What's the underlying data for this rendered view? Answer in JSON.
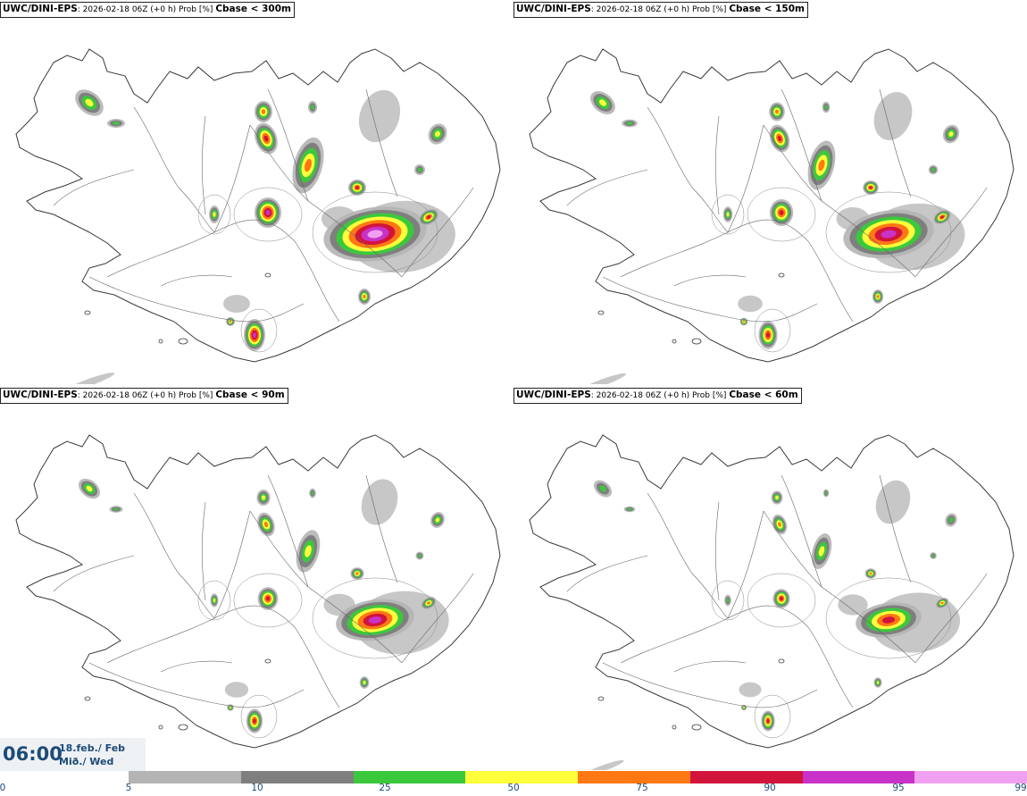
{
  "panels": [
    {
      "id": "p1",
      "model": "UWC/DINI-EPS",
      "info": ": 2026-02-18 06Z (+0 h) Prob [%]",
      "threshold": "Cbase < 300m",
      "intensity": 1.0
    },
    {
      "id": "p2",
      "model": "UWC/DINI-EPS",
      "info": ": 2026-02-18 06Z (+0 h) Prob [%]",
      "threshold": "Cbase < 150m",
      "intensity": 0.75
    },
    {
      "id": "p3",
      "model": "UWC/DINI-EPS",
      "info": ": 2026-02-18 06Z (+0 h) Prob [%]",
      "threshold": "Cbase < 90m",
      "intensity": 0.6
    },
    {
      "id": "p4",
      "model": "UWC/DINI-EPS",
      "info": ": 2026-02-18 06Z (+0 h) Prob [%]",
      "threshold": "Cbase < 60m",
      "intensity": 0.45
    }
  ],
  "time": {
    "clock": "06:00",
    "date_line1": "18.feb./ Feb",
    "date_line2": "Mið./ Wed"
  },
  "legend": {
    "ticks": [
      "0",
      "5",
      "10",
      "25",
      "50",
      "75",
      "90",
      "95",
      "99"
    ],
    "colors": [
      "#b4b4b4",
      "#7f7f7f",
      "#3cc83c",
      "#ffff3c",
      "#ff7814",
      "#d2143c",
      "#c832c8",
      "#f0a0f0"
    ]
  },
  "colors": {
    "coast": "#3a3a3a",
    "roads": "#666666"
  }
}
